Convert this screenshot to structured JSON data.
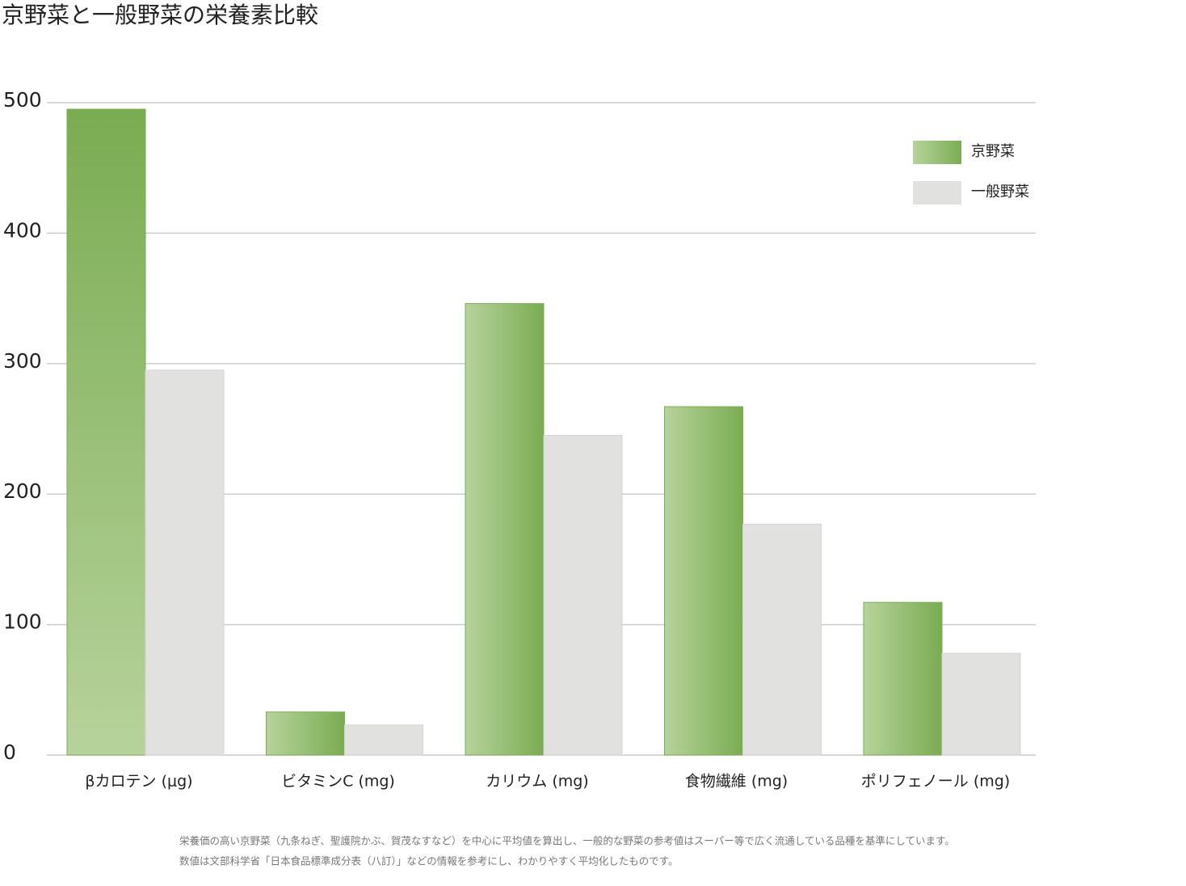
{
  "chart_data": {
    "type": "bar",
    "title": "京野菜と一般野菜の栄養素比較",
    "categories": [
      "βカロテン (μg)",
      "ビタミンC (mg)",
      "カリウム (mg)",
      "食物繊維 (mg)",
      "ポリフェノール (mg)"
    ],
    "series": [
      {
        "name": "京野菜",
        "color": "#7aac52",
        "values": [
          495,
          33,
          346,
          267,
          117
        ]
      },
      {
        "name": "一般野菜",
        "color": "#e1e1e0",
        "values": [
          295,
          23,
          245,
          177,
          78
        ]
      }
    ],
    "ylim": [
      0,
      500
    ],
    "yticks": [
      0,
      100,
      200,
      300,
      400,
      500
    ],
    "grid": true,
    "legend": "top-right",
    "notes": [
      "栄養価の高い京野菜（九条ねぎ、聖護院かぶ、賀茂なすなど）を中心に平均値を算出し、一般的な野菜の参考値はスーパー等で広く流通している品種を基準にしています。",
      "数値は文部科学省「日本食品標準成分表（八訂）」などの情報を参考にし、わかりやすく平均化したものです。"
    ]
  }
}
